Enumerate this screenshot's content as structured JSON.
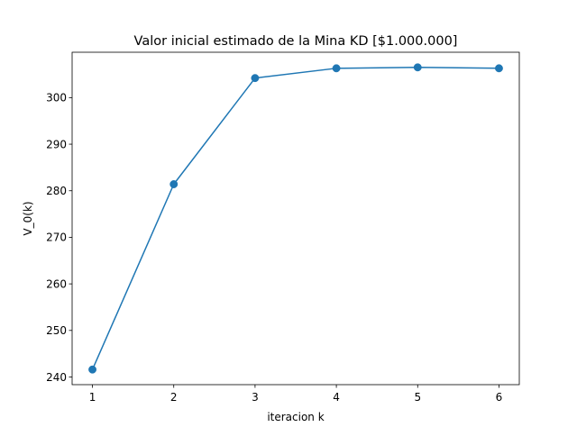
{
  "chart_data": {
    "type": "line",
    "title": "Valor inicial estimado de la Mina KD [$1.000.000]",
    "xlabel": "iteracion k",
    "ylabel": "V_0(k)",
    "x": [
      1,
      2,
      3,
      4,
      5,
      6
    ],
    "series": [
      {
        "values": [
          241.6,
          281.4,
          304.2,
          306.3,
          306.5,
          306.3
        ],
        "color": "#1f77b4",
        "marker": "circle"
      }
    ],
    "xticks": [
      1,
      2,
      3,
      4,
      5,
      6
    ],
    "yticks": [
      240,
      250,
      260,
      270,
      280,
      290,
      300
    ],
    "xlim": [
      0.75,
      6.25
    ],
    "ylim": [
      238.355,
      309.745
    ],
    "grid": false,
    "legend": "none"
  }
}
